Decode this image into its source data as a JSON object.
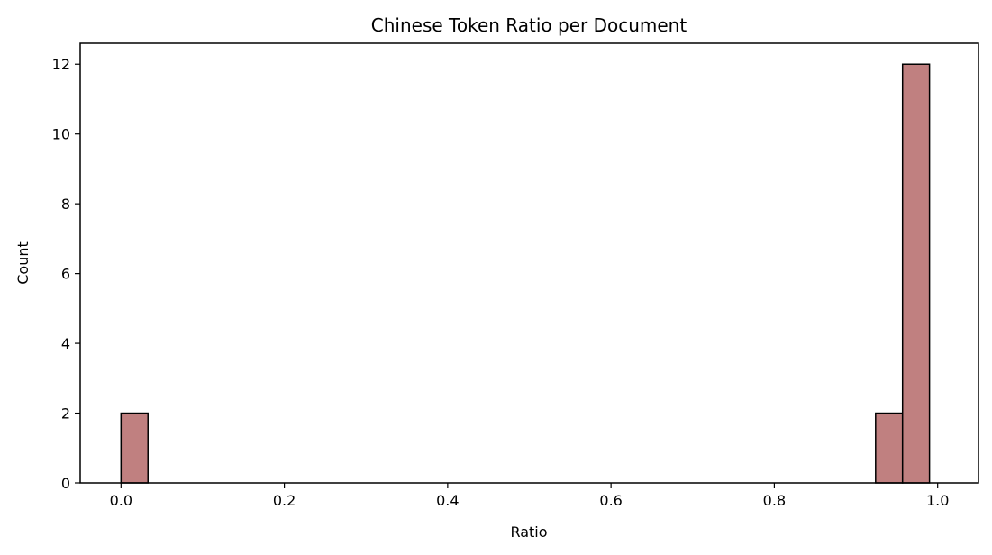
{
  "chart_data": {
    "type": "bar",
    "title": "Chinese Token Ratio per Document",
    "xlabel": "Ratio",
    "ylabel": "Count",
    "xlim": [
      -0.05,
      1.05
    ],
    "ylim": [
      0,
      12.6
    ],
    "xticks": [
      0.0,
      0.2,
      0.4,
      0.6,
      0.8,
      1.0
    ],
    "xtick_labels": [
      "0.0",
      "0.2",
      "0.4",
      "0.6",
      "0.8",
      "1.0"
    ],
    "yticks": [
      0,
      2,
      4,
      6,
      8,
      10,
      12
    ],
    "ytick_labels": [
      "0",
      "2",
      "4",
      "6",
      "8",
      "10",
      "12"
    ],
    "bins": [
      {
        "x0": 0.0,
        "x1": 0.033,
        "count": 2
      },
      {
        "x0": 0.924,
        "x1": 0.957,
        "count": 2
      },
      {
        "x0": 0.957,
        "x1": 0.99,
        "count": 12
      }
    ],
    "bar_color": "#c08080",
    "edge_color": "#000000",
    "grid": false
  }
}
